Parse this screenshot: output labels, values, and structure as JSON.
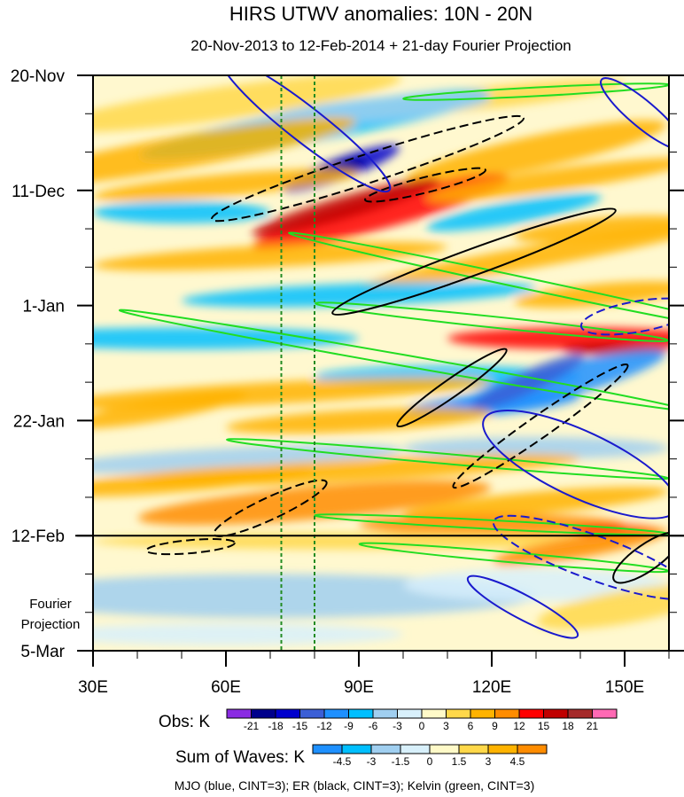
{
  "chart_data": {
    "type": "heatmap",
    "title": "HIRS UTWV anomalies: 10N - 20N",
    "subtitle": "20-Nov-2013 to 12-Feb-2014 + 21-day Fourier Projection",
    "x_ticks": [
      {
        "value": 30,
        "label": "30E"
      },
      {
        "value": 60,
        "label": "60E"
      },
      {
        "value": 90,
        "label": "90E"
      },
      {
        "value": 120,
        "label": "120E"
      },
      {
        "value": 150,
        "label": "150E"
      }
    ],
    "xlim": [
      30,
      160
    ],
    "ylim_days": [
      0,
      105
    ],
    "y_ticks": [
      {
        "day": 0,
        "label": "20-Nov"
      },
      {
        "day": 21,
        "label": "11-Dec"
      },
      {
        "day": 42,
        "label": "1-Jan"
      },
      {
        "day": 63,
        "label": "22-Jan"
      },
      {
        "day": 84,
        "label": "12-Feb"
      },
      {
        "day": 105,
        "label": "5-Mar"
      }
    ],
    "projection_label_line1": "Fourier",
    "projection_label_line2": "Projection",
    "projection_start_day": 84,
    "vertical_reference_lines_lon": [
      72.5,
      80
    ],
    "obs_legend": {
      "label": "Obs: K",
      "levels": [
        "-21",
        "-18",
        "-15",
        "-12",
        "-9",
        "-6",
        "-3",
        "0",
        "3",
        "6",
        "9",
        "12",
        "15",
        "18",
        "21"
      ],
      "colors": [
        "#8a2be2",
        "#00008b",
        "#0000cd",
        "#3b5fd6",
        "#1e90ff",
        "#00bfff",
        "#a0cff0",
        "#d8f0fb",
        "#fffac8",
        "#ffd84a",
        "#ffb300",
        "#ff8c00",
        "#ff0000",
        "#c00000",
        "#a52a2a",
        "#ff69b4"
      ]
    },
    "waves_legend": {
      "label": "Sum of Waves: K",
      "levels": [
        "-4.5",
        "-3",
        "-1.5",
        "0",
        "1.5",
        "3",
        "4.5"
      ],
      "colors": [
        "#1e90ff",
        "#00bfff",
        "#a0cff0",
        "#d8f0fb",
        "#fffac8",
        "#ffd84a",
        "#ffb300",
        "#ff8c00"
      ]
    },
    "footer": "MJO (blue, CINT=3); ER (black, CINT=3); Kelvin (green, CINT=3)",
    "contour_colors": {
      "mjo": "#1a1acd",
      "er": "#000000",
      "kelvin": "#22dd22"
    },
    "mjo_contours": [
      {
        "lon": 78,
        "day": 9,
        "rlon": 24,
        "rday": 3.2,
        "angle": 38,
        "dashed": false
      },
      {
        "lon": 154,
        "day": 7,
        "rlon": 12,
        "rday": 2.4,
        "angle": 40,
        "dashed": false
      },
      {
        "lon": 140,
        "day": 71,
        "rlon": 24,
        "rday": 6,
        "angle": 25,
        "dashed": false
      },
      {
        "lon": 143,
        "day": 88,
        "rlon": 24,
        "rday": 4,
        "angle": 20,
        "dashed": true
      },
      {
        "lon": 153,
        "day": 44,
        "rlon": 13,
        "rday": 2.8,
        "angle": -10,
        "dashed": true
      },
      {
        "lon": 127,
        "day": 97,
        "rlon": 14,
        "rday": 2.2,
        "angle": 28,
        "dashed": false
      }
    ],
    "er_contours": [
      {
        "lon": 92,
        "day": 17,
        "rlon": 37,
        "rday": 2.6,
        "angle": -18,
        "dashed": true
      },
      {
        "lon": 105,
        "day": 20,
        "rlon": 14,
        "rday": 1.4,
        "angle": -14,
        "dashed": true
      },
      {
        "lon": 116,
        "day": 34,
        "rlon": 34,
        "rday": 2.4,
        "angle": -20,
        "dashed": false
      },
      {
        "lon": 131,
        "day": 64,
        "rlon": 24,
        "rday": 2,
        "angle": -35,
        "dashed": true
      },
      {
        "lon": 111,
        "day": 57,
        "rlon": 15,
        "rday": 1.6,
        "angle": -35,
        "dashed": false
      },
      {
        "lon": 70,
        "day": 79,
        "rlon": 14,
        "rday": 2,
        "angle": -25,
        "dashed": true
      },
      {
        "lon": 52,
        "day": 86,
        "rlon": 10,
        "rday": 1.2,
        "angle": -5,
        "dashed": true
      },
      {
        "lon": 155,
        "day": 88,
        "rlon": 9,
        "rday": 2.4,
        "angle": -35,
        "dashed": false
      }
    ],
    "kelvin_contours": [
      {
        "lon": 130,
        "day": 3,
        "rlon": 30,
        "rday": 0.8,
        "angle": -3
      },
      {
        "lon": 128,
        "day": 38,
        "rlon": 55,
        "rday": 1,
        "angle": 12
      },
      {
        "lon": 100,
        "day": 52,
        "rlon": 65,
        "rday": 1,
        "angle": 10
      },
      {
        "lon": 120,
        "day": 45,
        "rlon": 40,
        "rday": 1,
        "angle": 6
      },
      {
        "lon": 110,
        "day": 70,
        "rlon": 50,
        "rday": 0.9,
        "angle": 5
      },
      {
        "lon": 120,
        "day": 82,
        "rlon": 40,
        "rday": 0.8,
        "angle": 3
      },
      {
        "lon": 125,
        "day": 88,
        "rlon": 35,
        "rday": 0.9,
        "angle": 5
      }
    ]
  }
}
